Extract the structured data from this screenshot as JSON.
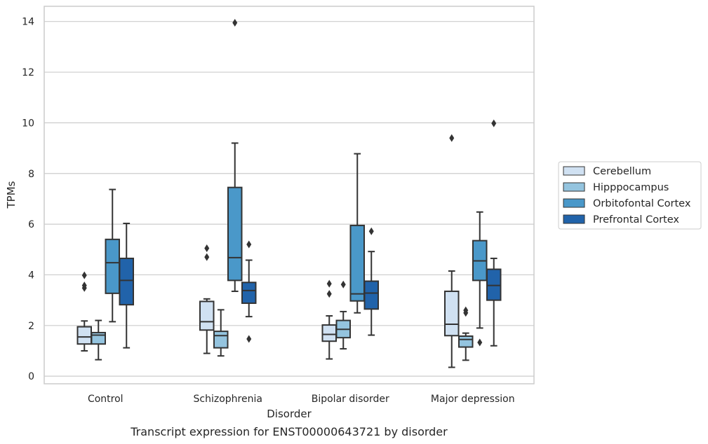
{
  "chart_data": {
    "type": "box",
    "caption": "Transcript expression for ENST00000643721 by disorder",
    "xlabel": "Disorder",
    "ylabel": "TPMs",
    "ylim": [
      -0.3,
      14.6
    ],
    "yticks": [
      0,
      2,
      4,
      6,
      8,
      10,
      12,
      14
    ],
    "grid": "horizontal",
    "legend_position": "right",
    "categories": [
      "Control",
      "Schizophrenia",
      "Bipolar disorder",
      "Major depression"
    ],
    "series": [
      {
        "name": "Cerebellum",
        "color": "#d0e1f2",
        "boxes": [
          {
            "whislo": 1.0,
            "q1": 1.27,
            "med": 1.55,
            "q3": 1.95,
            "whishi": 2.18,
            "fliers": [
              3.48,
              3.58,
              3.98
            ]
          },
          {
            "whislo": 0.9,
            "q1": 1.82,
            "med": 2.15,
            "q3": 2.95,
            "whishi": 3.05,
            "fliers": [
              4.7,
              5.05
            ]
          },
          {
            "whislo": 0.68,
            "q1": 1.38,
            "med": 1.65,
            "q3": 2.02,
            "whishi": 2.38,
            "fliers": [
              3.25,
              3.65
            ]
          },
          {
            "whislo": 0.35,
            "q1": 1.6,
            "med": 2.05,
            "q3": 3.35,
            "whishi": 4.15,
            "fliers": [
              9.4
            ]
          }
        ]
      },
      {
        "name": "Hipppocampus",
        "color": "#94c4df",
        "boxes": [
          {
            "whislo": 0.65,
            "q1": 1.27,
            "med": 1.62,
            "q3": 1.72,
            "whishi": 2.2,
            "fliers": []
          },
          {
            "whislo": 0.8,
            "q1": 1.12,
            "med": 1.6,
            "q3": 1.77,
            "whishi": 2.62,
            "fliers": []
          },
          {
            "whislo": 1.08,
            "q1": 1.52,
            "med": 1.85,
            "q3": 2.2,
            "whishi": 2.55,
            "fliers": [
              3.62
            ]
          },
          {
            "whislo": 0.63,
            "q1": 1.15,
            "med": 1.45,
            "q3": 1.58,
            "whishi": 1.7,
            "fliers": [
              2.5,
              2.6
            ]
          }
        ]
      },
      {
        "name": "Orbitofontal Cortex",
        "color": "#4a98c9",
        "boxes": [
          {
            "whislo": 2.15,
            "q1": 3.27,
            "med": 4.48,
            "q3": 5.4,
            "whishi": 7.37,
            "fliers": []
          },
          {
            "whislo": 3.35,
            "q1": 3.78,
            "med": 4.68,
            "q3": 7.45,
            "whishi": 9.2,
            "fliers": [
              13.95
            ]
          },
          {
            "whislo": 2.5,
            "q1": 2.97,
            "med": 3.25,
            "q3": 5.95,
            "whishi": 8.78,
            "fliers": []
          },
          {
            "whislo": 1.9,
            "q1": 3.78,
            "med": 4.55,
            "q3": 5.35,
            "whishi": 6.48,
            "fliers": [
              1.33
            ]
          }
        ]
      },
      {
        "name": "Prefrontal Cortex",
        "color": "#2163aa",
        "boxes": [
          {
            "whislo": 1.12,
            "q1": 2.82,
            "med": 3.78,
            "q3": 4.65,
            "whishi": 6.03,
            "fliers": []
          },
          {
            "whislo": 2.35,
            "q1": 2.88,
            "med": 3.38,
            "q3": 3.7,
            "whishi": 4.58,
            "fliers": [
              1.47,
              5.2
            ]
          },
          {
            "whislo": 1.62,
            "q1": 2.65,
            "med": 3.28,
            "q3": 3.75,
            "whishi": 4.92,
            "fliers": [
              5.72
            ]
          },
          {
            "whislo": 1.2,
            "q1": 3.0,
            "med": 3.58,
            "q3": 4.22,
            "whishi": 4.65,
            "fliers": [
              9.98
            ]
          }
        ]
      }
    ]
  },
  "colors": {
    "box_edge": "#333333",
    "grid": "#cccccc",
    "frame": "#cccccc"
  }
}
